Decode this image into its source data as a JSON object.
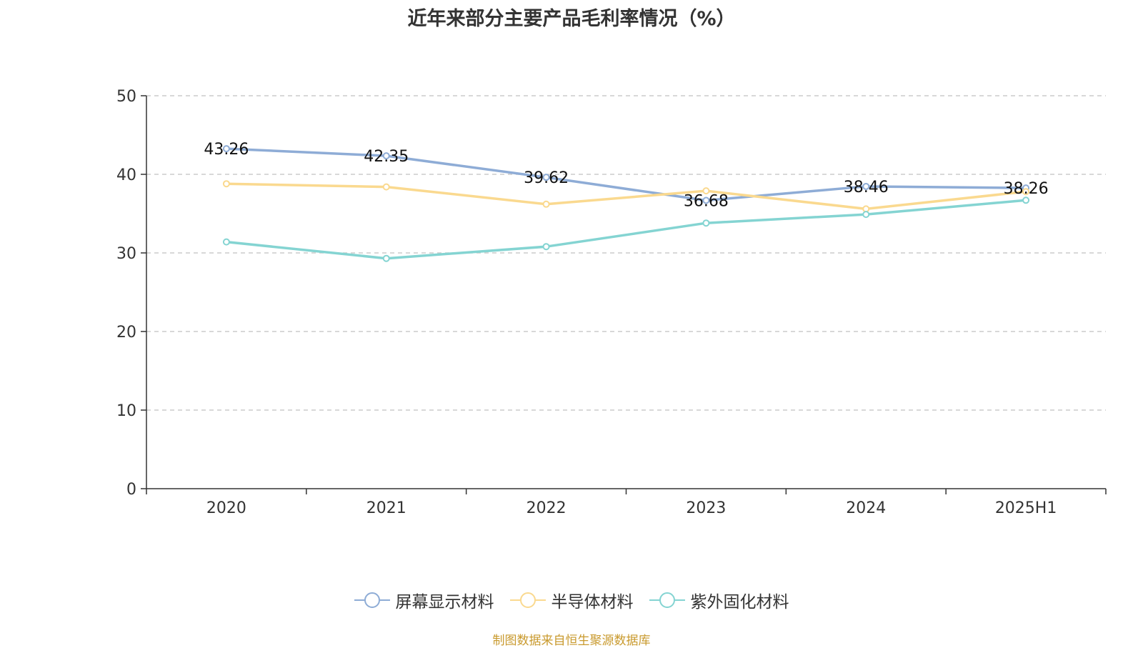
{
  "chart_data": {
    "type": "line",
    "title": "近年来部分主要产品毛利率情况（%）",
    "categories": [
      "2020",
      "2021",
      "2022",
      "2023",
      "2024",
      "2025H1"
    ],
    "ylim": [
      0,
      50
    ],
    "yticks": [
      "0",
      "10",
      "20",
      "30",
      "40",
      "50"
    ],
    "grid": "horizontal-dashed",
    "legend_position": "bottom",
    "series": [
      {
        "name": "屏幕显示材料",
        "values": [
          43.26,
          42.35,
          39.62,
          36.68,
          38.46,
          38.26
        ],
        "labels": [
          "43.26",
          "42.35",
          "39.62",
          "36.68",
          "38.46",
          "38.26"
        ],
        "color": "#8eacd6"
      },
      {
        "name": "半导体材料",
        "values": [
          38.8,
          38.4,
          36.2,
          37.9,
          35.6,
          37.8
        ],
        "color": "#fad98f"
      },
      {
        "name": "紫外固化材料",
        "values": [
          31.4,
          29.3,
          30.8,
          33.8,
          34.9,
          36.7
        ],
        "color": "#84d4d2"
      }
    ]
  },
  "source": "制图数据来自恒生聚源数据库"
}
